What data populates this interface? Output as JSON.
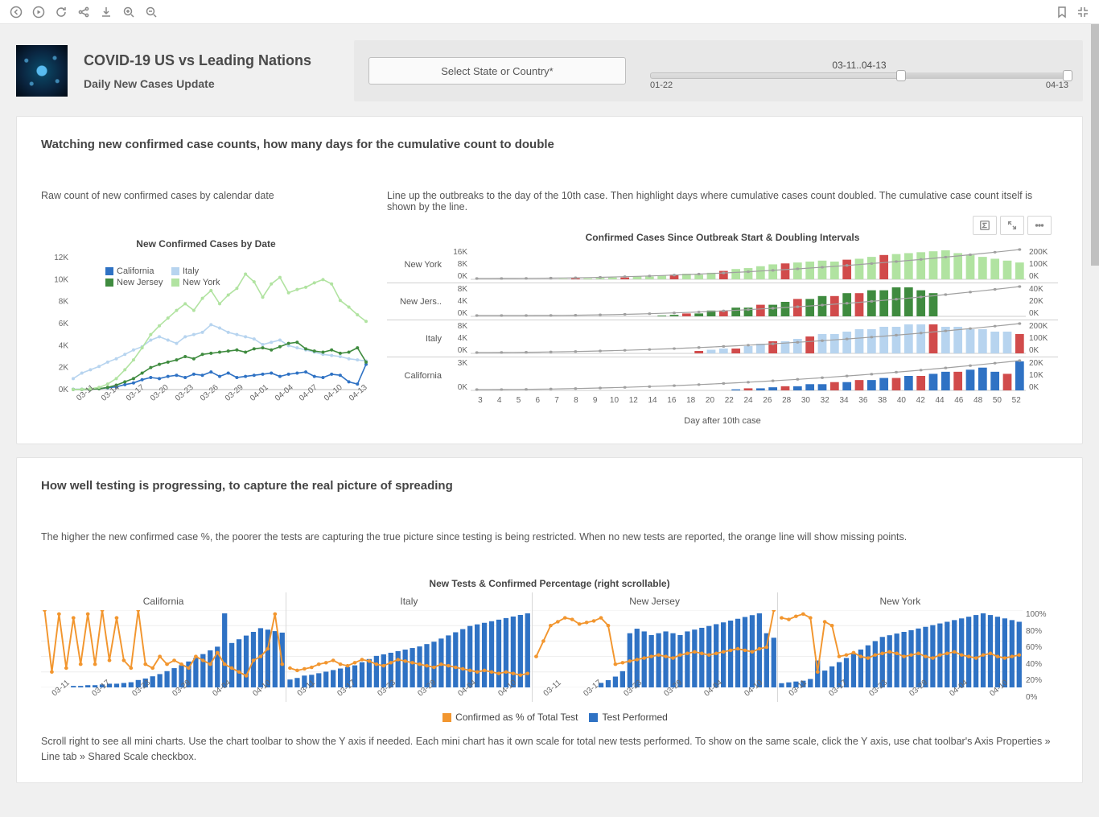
{
  "header": {
    "title": "COVID-19 US vs Leading Nations",
    "subtitle": "Daily New Cases Update"
  },
  "toolbar": {
    "icons": [
      "prev",
      "play",
      "refresh",
      "share",
      "download",
      "zoom-in",
      "zoom-out"
    ],
    "right_icons": [
      "bookmark",
      "collapse"
    ]
  },
  "controls": {
    "select_label": "Select State or Country*",
    "slider_range_label": "03-11..04-13",
    "slider_min": "01-22",
    "slider_max": "04-13",
    "slider_start_pct": 60,
    "slider_end_pct": 100
  },
  "section1": {
    "title": "Watching new confirmed case counts, how many days for the cumulative count to double",
    "left_sub": "Raw count of new confirmed cases by calendar date",
    "right_sub": "Line up the outbreaks to the day of the 10th case. Then highlight days where cumulative cases count doubled. The cumulative case count itself is shown by the line.",
    "chart1": {
      "title": "New Confirmed Cases by Date",
      "type": "line",
      "ylim": [
        0,
        12000
      ],
      "ytick_step": 2000,
      "x_labels": [
        "03-11",
        "03-14",
        "03-17",
        "03-20",
        "03-23",
        "03-26",
        "03-29",
        "04-01",
        "04-04",
        "04-07",
        "04-10",
        "04-13"
      ],
      "series": [
        {
          "name": "California",
          "color": "#2f72c4",
          "values": [
            20,
            30,
            55,
            90,
            170,
            250,
            450,
            600,
            900,
            1100,
            1000,
            1200,
            1300,
            1100,
            1400,
            1300,
            1600,
            1200,
            1500,
            1100,
            1200,
            1300,
            1400,
            1500,
            1200,
            1400,
            1500,
            1600,
            1200,
            1100,
            1400,
            1300,
            700,
            500,
            2300
          ]
        },
        {
          "name": "Italy",
          "color": "#b7d4ef",
          "values": [
            1000,
            1500,
            1800,
            2100,
            2500,
            2800,
            3200,
            3600,
            3900,
            4500,
            4800,
            4500,
            4200,
            4800,
            5000,
            5200,
            5900,
            5600,
            5200,
            5000,
            4800,
            4600,
            4100,
            4300,
            4500,
            4000,
            3800,
            3600,
            3400,
            3200,
            3100,
            3000,
            2800,
            2700,
            2600
          ]
        },
        {
          "name": "New Jersey",
          "color": "#3f8b3f",
          "values": [
            5,
            10,
            30,
            80,
            200,
            400,
            700,
            1000,
            1500,
            2000,
            2300,
            2500,
            2700,
            3000,
            2800,
            3200,
            3300,
            3400,
            3500,
            3600,
            3400,
            3700,
            3800,
            3600,
            3900,
            4200,
            4300,
            3700,
            3500,
            3400,
            3600,
            3300,
            3400,
            3800,
            2500
          ]
        },
        {
          "name": "New York",
          "color": "#b1e3a1",
          "values": [
            10,
            30,
            80,
            200,
            500,
            1000,
            1800,
            2700,
            3800,
            5000,
            5800,
            6500,
            7200,
            7800,
            7200,
            8300,
            9000,
            7800,
            8600,
            9200,
            10500,
            9800,
            8400,
            9600,
            10200,
            8800,
            9100,
            9300,
            9700,
            10000,
            9600,
            8100,
            7500,
            6800,
            6200
          ]
        }
      ],
      "legend_pos": "inside-top-left",
      "background_color": "#ffffff",
      "axis_color": "#888888",
      "label_fontsize": 10
    },
    "chart2": {
      "title": "Confirmed Cases Since Outbreak Start & Doubling Intervals",
      "x_axis_label": "Day after 10th case",
      "x_ticks": [
        "3",
        "4",
        "5",
        "6",
        "7",
        "8",
        "9",
        "10",
        "12",
        "14",
        "16",
        "18",
        "20",
        "22",
        "24",
        "26",
        "28",
        "30",
        "32",
        "34",
        "36",
        "38",
        "40",
        "42",
        "44",
        "46",
        "48",
        "50",
        "52"
      ],
      "rows": [
        {
          "label": "New York",
          "bar_color": "#b1e3a1",
          "double_color": "#d14b4b",
          "y1_ticks": [
            "16K",
            "8K",
            "0K"
          ],
          "y2_ticks": [
            "200K",
            "100K",
            "0K"
          ],
          "bars": [
            0,
            0,
            0,
            0,
            0,
            0,
            0,
            200,
            400,
            400,
            600,
            800,
            800,
            1200,
            1200,
            1600,
            2000,
            2400,
            2000,
            2800,
            3600,
            4400,
            4800,
            5600,
            6400,
            6800,
            7200,
            7600,
            8000,
            7600,
            8400,
            8800,
            9600,
            10400,
            10800,
            11200,
            11600,
            12000,
            12400,
            11200,
            10400,
            9600,
            8800,
            8000,
            7200
          ],
          "doubles": [
            8,
            12,
            16,
            20,
            25,
            30,
            33
          ],
          "line": [
            0,
            100,
            300,
            600,
            1000,
            1600,
            2400,
            3400,
            4600,
            6000,
            7600,
            9400,
            11400,
            13600,
            16000,
            18600,
            21400,
            24400,
            27600,
            31000,
            34600,
            38400,
            42400,
            46600,
            51000,
            55600,
            60400,
            65400,
            70600,
            76000,
            81600,
            87400,
            93400,
            99600,
            106000,
            112600,
            119400,
            126400,
            133600,
            141000,
            148600,
            156400,
            164400,
            172600,
            181000
          ]
        },
        {
          "label": "New Jers..",
          "bar_color": "#3f8b3f",
          "double_color": "#d14b4b",
          "y1_ticks": [
            "8K",
            "4K",
            "0K"
          ],
          "y2_ticks": [
            "40K",
            "20K",
            "0K"
          ],
          "bars": [
            0,
            0,
            0,
            0,
            0,
            0,
            0,
            0,
            0,
            0,
            0,
            0,
            0,
            0,
            0,
            100,
            200,
            400,
            400,
            800,
            800,
            1200,
            1200,
            1600,
            1600,
            2000,
            2400,
            2400,
            2800,
            2800,
            3200,
            3200,
            3600,
            3600,
            4000,
            4000,
            3600,
            3200,
            0,
            0,
            0,
            0,
            0,
            0,
            0
          ],
          "doubles": [
            17,
            20,
            23,
            26,
            29,
            31
          ],
          "line": [
            0,
            0,
            0,
            0,
            0,
            50,
            120,
            220,
            360,
            540,
            760,
            1020,
            1320,
            1660,
            2040,
            2460,
            2920,
            3420,
            3960,
            4540,
            5160,
            5820,
            6520,
            7260,
            8040,
            8860,
            9720,
            10620,
            11560,
            12540,
            13560,
            14620,
            15720,
            16860,
            18040,
            19260,
            20520,
            21820,
            23160,
            24540,
            25960,
            27420,
            28920,
            30460,
            32040
          ]
        },
        {
          "label": "Italy",
          "bar_color": "#b7d4ef",
          "double_color": "#d14b4b",
          "y1_ticks": [
            "8K",
            "4K",
            "0K"
          ],
          "y2_ticks": [
            "200K",
            "100K",
            "0K"
          ],
          "bars": [
            0,
            0,
            0,
            0,
            0,
            0,
            0,
            0,
            0,
            0,
            0,
            0,
            0,
            0,
            0,
            0,
            0,
            0,
            400,
            600,
            800,
            800,
            1200,
            1600,
            2000,
            2000,
            2400,
            2800,
            3200,
            3200,
            3600,
            4000,
            4000,
            4400,
            4400,
            4800,
            4800,
            4800,
            4400,
            4400,
            4000,
            4000,
            3600,
            3600,
            3200
          ],
          "doubles": [
            18,
            21,
            24,
            27,
            37,
            44
          ],
          "line": [
            0,
            50,
            150,
            300,
            500,
            750,
            1050,
            1400,
            1800,
            2250,
            2750,
            3300,
            3900,
            4550,
            5250,
            6000,
            6800,
            7650,
            8550,
            9500,
            10500,
            11550,
            12650,
            13800,
            15000,
            16250,
            17550,
            18900,
            20300,
            21750,
            23250,
            24800,
            26400,
            28050,
            29750,
            31500,
            33300,
            35150,
            37050,
            39000,
            41000,
            43050,
            45150,
            47300,
            49500
          ]
        },
        {
          "label": "California",
          "bar_color": "#2f72c4",
          "double_color": "#d14b4b",
          "y1_ticks": [
            "3K",
            "",
            "0K"
          ],
          "y2_ticks": [
            "20K",
            "10K",
            "0K"
          ],
          "bars": [
            0,
            0,
            0,
            0,
            0,
            0,
            0,
            0,
            0,
            0,
            0,
            0,
            0,
            0,
            0,
            0,
            0,
            0,
            0,
            0,
            0,
            100,
            200,
            200,
            300,
            400,
            400,
            600,
            600,
            800,
            800,
            1000,
            1000,
            1200,
            1200,
            1400,
            1400,
            1600,
            1800,
            1800,
            2000,
            2200,
            1800,
            1600,
            2800
          ],
          "doubles": [
            22,
            25,
            29,
            31,
            34,
            36,
            39,
            43
          ],
          "line": [
            0,
            0,
            10,
            25,
            45,
            70,
            100,
            135,
            175,
            220,
            270,
            325,
            385,
            450,
            520,
            595,
            675,
            760,
            850,
            945,
            1045,
            1150,
            1260,
            1375,
            1495,
            1620,
            1750,
            1885,
            2025,
            2170,
            2320,
            2475,
            2635,
            2800,
            2970,
            3145,
            3325,
            3510,
            3700,
            3895,
            4095,
            4300,
            4510,
            4725,
            4945
          ]
        }
      ],
      "line_color": "#a0a0a0",
      "toolbar_icons": [
        "sigma",
        "expand",
        "more"
      ]
    }
  },
  "section2": {
    "title": "How well testing is progressing, to capture the real picture of spreading",
    "sub": "The higher the new confirmed case %, the poorer the tests are capturing the true picture since testing is being restricted. When no new tests are reported, the orange line will show missing points.",
    "chart_title": "New Tests & Confirmed Percentage (right scrollable)",
    "x_labels": [
      "03-11",
      "03-17",
      "03-23",
      "03-29",
      "04-04",
      "04-10"
    ],
    "y2_ticks": [
      "100%",
      "80%",
      "60%",
      "40%",
      "20%",
      "0%"
    ],
    "legend": [
      {
        "label": "Confirmed as % of Total Test",
        "color": "#f2962f",
        "type": "square"
      },
      {
        "label": "Test Performed",
        "color": "#2f72c4",
        "type": "square"
      }
    ],
    "panels": [
      {
        "name": "California",
        "bars": [
          0,
          0,
          0,
          0,
          2,
          2,
          3,
          3,
          4,
          5,
          5,
          6,
          7,
          10,
          12,
          15,
          18,
          22,
          26,
          30,
          35,
          40,
          45,
          50,
          55,
          100,
          60,
          65,
          70,
          75,
          80,
          78,
          76,
          74
        ],
        "line": [
          100,
          20,
          95,
          25,
          90,
          30,
          95,
          30,
          100,
          35,
          90,
          35,
          25,
          100,
          30,
          25,
          40,
          30,
          35,
          30,
          25,
          40,
          35,
          30,
          45,
          30,
          25,
          20,
          15,
          35,
          40,
          50,
          95,
          30
        ]
      },
      {
        "name": "Italy",
        "bars": [
          10,
          12,
          15,
          16,
          18,
          20,
          22,
          24,
          26,
          28,
          32,
          36,
          40,
          42,
          44,
          46,
          48,
          50,
          52,
          55,
          58,
          62,
          66,
          70,
          74,
          78,
          80,
          82,
          84,
          86,
          88,
          90,
          92,
          94
        ],
        "line": [
          25,
          22,
          24,
          26,
          30,
          32,
          35,
          30,
          28,
          32,
          36,
          34,
          30,
          28,
          32,
          36,
          34,
          32,
          30,
          28,
          26,
          30,
          28,
          26,
          24,
          22,
          20,
          22,
          20,
          18,
          20,
          18,
          16,
          18
        ]
      },
      {
        "name": "New Jersey",
        "bars": [
          0,
          0,
          0,
          0,
          0,
          0,
          0,
          0,
          0,
          5,
          8,
          12,
          18,
          60,
          65,
          62,
          58,
          60,
          62,
          60,
          58,
          62,
          64,
          66,
          68,
          70,
          72,
          74,
          76,
          78,
          80,
          82,
          60,
          55
        ],
        "line": [
          40,
          60,
          80,
          85,
          90,
          88,
          82,
          84,
          86,
          90,
          80,
          30,
          32,
          34,
          36,
          38,
          40,
          42,
          40,
          38,
          42,
          44,
          46,
          44,
          42,
          44,
          46,
          48,
          50,
          48,
          46,
          50,
          52,
          100
        ]
      },
      {
        "name": "New York",
        "bars": [
          5,
          6,
          7,
          8,
          10,
          32,
          20,
          25,
          30,
          35,
          40,
          45,
          50,
          55,
          60,
          62,
          64,
          66,
          68,
          70,
          72,
          74,
          76,
          78,
          80,
          82,
          84,
          86,
          88,
          86,
          84,
          82,
          80,
          78
        ],
        "line": [
          90,
          88,
          92,
          95,
          90,
          20,
          85,
          80,
          40,
          42,
          45,
          40,
          38,
          42,
          44,
          46,
          44,
          40,
          42,
          44,
          40,
          38,
          42,
          44,
          46,
          42,
          40,
          38,
          42,
          44,
          40,
          38,
          40,
          42
        ]
      }
    ],
    "footer_note": "Scroll right to see all mini charts. Use the chart toolbar to show the Y axis if needed. Each mini chart has it own scale for total new tests performed. To show on the same scale, click the Y axis, use chat toolbar's Axis Properties  » Line tab » Shared Scale checkbox."
  },
  "colors": {
    "bar_blue": "#2f72c4",
    "orange": "#f2962f",
    "grid": "#d8d8d8",
    "axis": "#888888"
  }
}
